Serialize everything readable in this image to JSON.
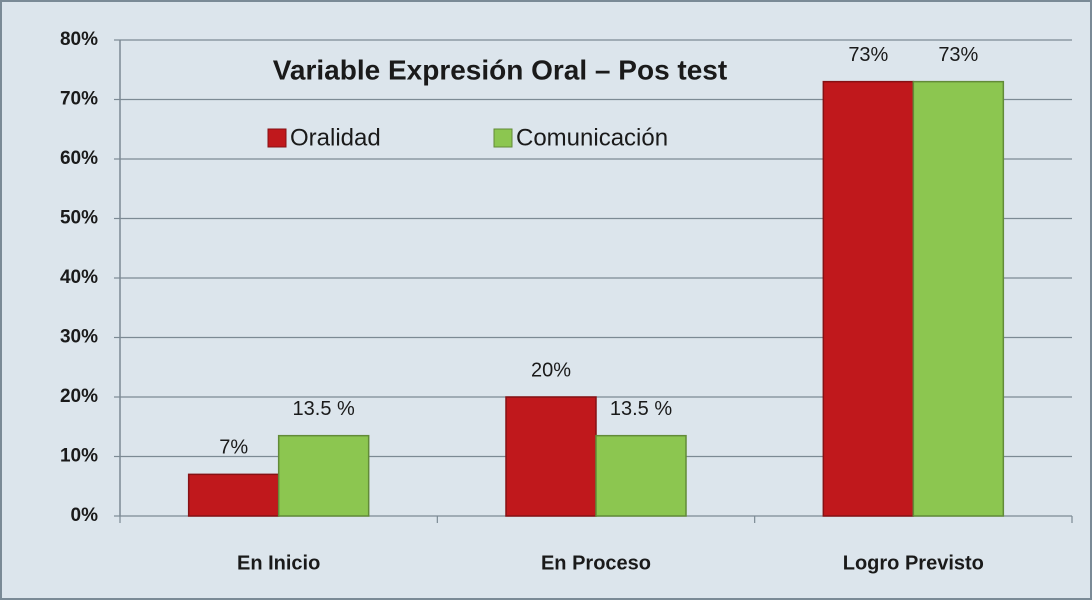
{
  "chart_data": {
    "type": "bar",
    "title": "Variable Expresión Oral – Pos test",
    "categories": [
      "En Inicio",
      "En Proceso",
      "Logro Previsto"
    ],
    "series": [
      {
        "name": "Oralidad",
        "color": "#c0181c",
        "values": [
          7,
          20,
          73
        ],
        "value_labels": [
          "7%",
          "20%",
          "73%"
        ]
      },
      {
        "name": "Comunicación",
        "color": "#8cc650",
        "values": [
          13.5,
          13.5,
          73
        ],
        "value_labels": [
          "13.5 %",
          "13.5 %",
          "73%"
        ]
      }
    ],
    "ylim": [
      0,
      80
    ],
    "yticks": [
      {
        "value": 0,
        "label": "0%"
      },
      {
        "value": 10,
        "label": "10%"
      },
      {
        "value": 20,
        "label": "20%"
      },
      {
        "value": 30,
        "label": "30%"
      },
      {
        "value": 40,
        "label": "40%"
      },
      {
        "value": 50,
        "label": "50%"
      },
      {
        "value": 60,
        "label": "60%"
      },
      {
        "value": 70,
        "label": "70%"
      },
      {
        "value": 80,
        "label": "80%"
      }
    ],
    "grid": true
  }
}
